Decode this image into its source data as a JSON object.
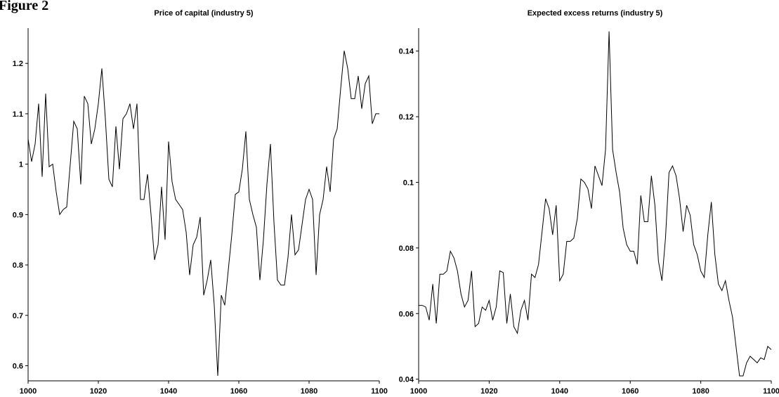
{
  "figure": {
    "heading": "Figure 2"
  },
  "chart_data": [
    {
      "type": "line",
      "title": "Price of capital (industry 5)",
      "xlabel": "",
      "ylabel": "",
      "xlim": [
        1000,
        1100
      ],
      "ylim": [
        0.57,
        1.27
      ],
      "xticks": [
        1000,
        1020,
        1040,
        1060,
        1080,
        1100
      ],
      "yticks": [
        0.6,
        0.7,
        0.8,
        0.9,
        1.0,
        1.1,
        1.2
      ],
      "ytick_labels": [
        "0.6",
        "0.7",
        "0.8",
        "0.9",
        "1",
        "1.1",
        "1.2"
      ],
      "grid": false,
      "color": "#000000",
      "series": [
        {
          "x": [
            1000,
            1001,
            1002,
            1003,
            1004,
            1005,
            1006,
            1007,
            1008,
            1009,
            1010,
            1011,
            1012,
            1013,
            1014,
            1015,
            1016,
            1017,
            1018,
            1019,
            1020,
            1021,
            1022,
            1023,
            1024,
            1025,
            1026,
            1027,
            1028,
            1029,
            1030,
            1031,
            1032,
            1033,
            1034,
            1035,
            1036,
            1037,
            1038,
            1039,
            1040,
            1041,
            1042,
            1043,
            1044,
            1045,
            1046,
            1047,
            1048,
            1049,
            1050,
            1051,
            1052,
            1053,
            1054,
            1055,
            1056,
            1057,
            1058,
            1059,
            1060,
            1061,
            1062,
            1063,
            1064,
            1065,
            1066,
            1067,
            1068,
            1069,
            1070,
            1071,
            1072,
            1073,
            1074,
            1075,
            1076,
            1077,
            1078,
            1079,
            1080,
            1081,
            1082,
            1083,
            1084,
            1085,
            1086,
            1087,
            1088,
            1089,
            1090,
            1091,
            1092,
            1093,
            1094,
            1095,
            1096,
            1097,
            1098,
            1099,
            1100
          ],
          "values": [
            1.05,
            1.005,
            1.04,
            1.12,
            0.975,
            1.14,
            0.995,
            1.0,
            0.945,
            0.9,
            0.91,
            0.915,
            1.0,
            1.085,
            1.07,
            0.96,
            1.135,
            1.12,
            1.04,
            1.07,
            1.12,
            1.19,
            1.09,
            0.97,
            0.955,
            1.075,
            0.99,
            1.09,
            1.1,
            1.12,
            1.07,
            1.12,
            0.93,
            0.93,
            0.98,
            0.9,
            0.81,
            0.84,
            0.955,
            0.85,
            1.045,
            0.965,
            0.93,
            0.92,
            0.91,
            0.865,
            0.78,
            0.84,
            0.855,
            0.895,
            0.74,
            0.77,
            0.81,
            0.72,
            0.58,
            0.74,
            0.72,
            0.79,
            0.86,
            0.94,
            0.945,
            0.99,
            1.065,
            0.93,
            0.9,
            0.875,
            0.77,
            0.85,
            0.96,
            1.04,
            0.885,
            0.77,
            0.76,
            0.76,
            0.815,
            0.9,
            0.82,
            0.83,
            0.88,
            0.93,
            0.95,
            0.93,
            0.78,
            0.9,
            0.93,
            0.995,
            0.945,
            1.05,
            1.07,
            1.15,
            1.225,
            1.19,
            1.13,
            1.13,
            1.175,
            1.11,
            1.16,
            1.175,
            1.08,
            1.1,
            1.1
          ]
        }
      ]
    },
    {
      "type": "line",
      "title": "Expected excess returns (industry 5)",
      "xlabel": "",
      "ylabel": "",
      "xlim": [
        1000,
        1100
      ],
      "ylim": [
        0.0395,
        0.147
      ],
      "xticks": [
        1000,
        1020,
        1040,
        1060,
        1080,
        1100
      ],
      "yticks": [
        0.04,
        0.06,
        0.08,
        0.1,
        0.12,
        0.14
      ],
      "ytick_labels": [
        "0.04",
        "0.06",
        "0.08",
        "0.1",
        "0.12",
        "0.14"
      ],
      "grid": false,
      "color": "#000000",
      "series": [
        {
          "x": [
            1000,
            1001,
            1002,
            1003,
            1004,
            1005,
            1006,
            1007,
            1008,
            1009,
            1010,
            1011,
            1012,
            1013,
            1014,
            1015,
            1016,
            1017,
            1018,
            1019,
            1020,
            1021,
            1022,
            1023,
            1024,
            1025,
            1026,
            1027,
            1028,
            1029,
            1030,
            1031,
            1032,
            1033,
            1034,
            1035,
            1036,
            1037,
            1038,
            1039,
            1040,
            1041,
            1042,
            1043,
            1044,
            1045,
            1046,
            1047,
            1048,
            1049,
            1050,
            1051,
            1052,
            1053,
            1054,
            1055,
            1056,
            1057,
            1058,
            1059,
            1060,
            1061,
            1062,
            1063,
            1064,
            1065,
            1066,
            1067,
            1068,
            1069,
            1070,
            1071,
            1072,
            1073,
            1074,
            1075,
            1076,
            1077,
            1078,
            1079,
            1080,
            1081,
            1082,
            1083,
            1084,
            1085,
            1086,
            1087,
            1088,
            1089,
            1090,
            1091,
            1092,
            1093,
            1094,
            1095,
            1096,
            1097,
            1098,
            1099,
            1100
          ],
          "values": [
            0.0625,
            0.0625,
            0.062,
            0.058,
            0.069,
            0.057,
            0.072,
            0.072,
            0.073,
            0.079,
            0.077,
            0.073,
            0.066,
            0.062,
            0.064,
            0.073,
            0.056,
            0.057,
            0.062,
            0.061,
            0.064,
            0.058,
            0.062,
            0.073,
            0.0725,
            0.057,
            0.066,
            0.056,
            0.054,
            0.061,
            0.064,
            0.058,
            0.072,
            0.071,
            0.075,
            0.085,
            0.095,
            0.092,
            0.084,
            0.093,
            0.07,
            0.072,
            0.082,
            0.082,
            0.083,
            0.089,
            0.101,
            0.1,
            0.098,
            0.092,
            0.105,
            0.102,
            0.099,
            0.11,
            0.146,
            0.11,
            0.103,
            0.097,
            0.086,
            0.081,
            0.079,
            0.079,
            0.075,
            0.096,
            0.088,
            0.088,
            0.102,
            0.093,
            0.076,
            0.07,
            0.083,
            0.103,
            0.105,
            0.102,
            0.095,
            0.085,
            0.093,
            0.09,
            0.081,
            0.078,
            0.073,
            0.071,
            0.084,
            0.094,
            0.078,
            0.069,
            0.067,
            0.07,
            0.064,
            0.059,
            0.05,
            0.041,
            0.041,
            0.045,
            0.047,
            0.046,
            0.045,
            0.0465,
            0.046,
            0.05,
            0.049
          ]
        }
      ]
    }
  ]
}
